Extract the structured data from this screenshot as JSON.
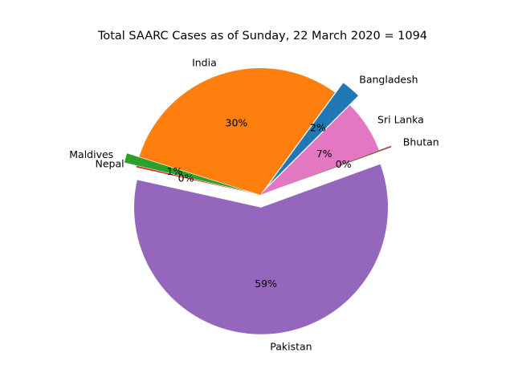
{
  "chart_data": {
    "type": "pie",
    "title": "Total SAARC Cases as of Sunday, 22 March 2020 = 1094",
    "total": 1094,
    "slices": [
      {
        "label": "Bangladesh",
        "value": 27,
        "pct_label": "2%",
        "color": "#1f77b4",
        "exploded": true
      },
      {
        "label": "India",
        "value": 330,
        "pct_label": "30%",
        "color": "#ff7f0e",
        "exploded": false
      },
      {
        "label": "Maldives",
        "value": 13,
        "pct_label": "1%",
        "color": "#2ca02c",
        "exploded": true
      },
      {
        "label": "Nepal",
        "value": 2,
        "pct_label": "0%",
        "color": "#d62728",
        "exploded": false
      },
      {
        "label": "Pakistan",
        "value": 646,
        "pct_label": "59%",
        "color": "#9467bd",
        "exploded": true
      },
      {
        "label": "Bhutan",
        "value": 2,
        "pct_label": "0%",
        "color": "#8c564b",
        "exploded": true
      },
      {
        "label": "Sri Lanka",
        "value": 74,
        "pct_label": "7%",
        "color": "#e377c2",
        "exploded": false
      }
    ],
    "start_angle_deg": 45,
    "direction": "counterclockwise",
    "legend": "none"
  }
}
